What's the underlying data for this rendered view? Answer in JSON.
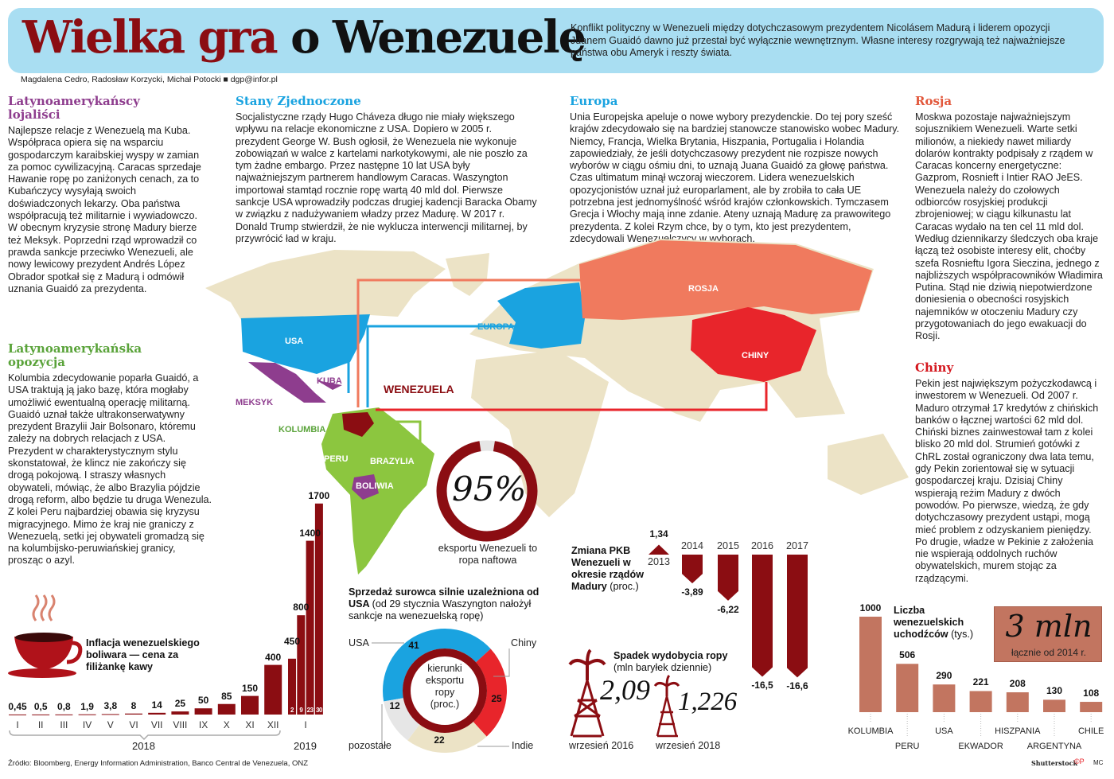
{
  "header": {
    "title_red": "Wielka gra",
    "title_black": "o Wenezuelę",
    "intro": "Konflikt polityczny w Wenezueli między dotychczasowym prezydentem Nicolásem Madurą i liderem opozycji Juanem Guaidó dawno już przestał być wyłącznie wewnętrznym. Własne interesy rozgrywają też najważniejsze państwa obu Ameryk i reszty świata.",
    "byline": "Magdalena Cedro, Radosław Korzycki, Michał Potocki ■ dgp@infor.pl"
  },
  "sections": {
    "loyalists": {
      "heading": "Latynoamerykańscy lojaliści",
      "text": "Najlepsze relacje z Wenezuelą ma Kuba. Współpraca opiera się na wsparciu gospodarczym karaibskiej wyspy w zamian za pomoc cywilizacyjną. Caracas sprzedaje Hawanie ropę po zaniżonych cenach, za to Kubańczycy wysyłają swoich doświadczonych lekarzy. Oba państwa współpracują też militarnie i wywiadowczo. W obecnym kryzysie stronę Madury bierze też Meksyk. Poprzedni rząd wprowadził co prawda sankcje przeciwko Wenezueli, ale nowy lewicowy prezydent Andrés López Obrador spotkał się z Madurą i odmówił uznania Guaidó za prezydenta."
    },
    "opposition": {
      "heading": "Latynoamerykańska opozycja",
      "text": "Kolumbia zdecydowanie poparła Guaidó, a USA traktują ją jako bazę, która mogłaby umożliwić ewentualną operację militarną. Guaidó uznał także ultrakonserwatywny prezydent Brazylii Jair Bolsonaro, któremu zależy na dobrych relacjach z USA. Prezydent w charakterystycznym stylu skonstatował, że klincz nie zakończy się drogą pokojową. I straszy własnych obywateli, mówiąc, że albo Brazylia pójdzie drogą reform, albo będzie tu druga Wenezula. Z kolei Peru najbardziej obawia się kryzysu migracyjnego. Mimo że kraj nie graniczy z Wenezuelą, setki jej obywateli gromadzą się na kolumbijsko-peruwiańskiej granicy, prosząc o azyl."
    },
    "usa": {
      "heading": "Stany Zjednoczone",
      "text": "Socjalistyczne rządy Hugo Cháveza długo nie miały większego wpływu na relacje ekonomiczne z USA. Dopiero w 2005 r. prezydent George W. Bush ogłosił, że Wenezuela nie wykonuje zobowiązań w walce z kartelami narkotykowymi, ale nie poszło za tym żadne embargo. Przez następne 10 lat USA były najważniejszym partnerem handlowym Caracas. Waszyngton importował stamtąd rocznie ropę wartą 40 mld dol. Pierwsze sankcje USA wprowadziły podczas drugiej kadencji Baracka Obamy w związku z nadużywaniem władzy przez Madurę. W 2017 r. Donald Trump stwierdził, że nie wyklucza interwencji militarnej, by przywrócić ład w kraju."
    },
    "europe": {
      "heading": "Europa",
      "text": "Unia Europejska apeluje o nowe wybory prezydenckie. Do tej pory sześć krajów zdecydowało się na bardziej stanowcze stanowisko wobec Madury. Niemcy, Francja, Wielka Brytania, Hiszpania, Portugalia i Holandia zapowiedziały, że jeśli dotychczasowy prezydent nie rozpisze nowych wyborów w ciągu ośmiu dni, to uznają Juana Guaidó za głowę państwa. Czas ultimatum minął wczoraj wieczorem. Lidera wenezuelskich opozycjonistów uznał już europarlament, ale by zrobiła to cała UE potrzebna jest jednomyślność wśród krajów członkowskich. Tymczasem Grecja i Włochy mają inne zdanie. Ateny uznają Madurę za prawowitego prezydenta. Z kolei Rzym chce, by o tym, kto jest prezydentem, zdecydowali Wenezuelczycy w wyborach."
    },
    "russia": {
      "heading": "Rosja",
      "text": "Moskwa pozostaje najważniejszym sojusznikiem Wenezueli. Warte setki milionów, a niekiedy nawet miliardy dolarów kontrakty podpisały z rządem w Caracas koncerny energetyczne: Gazprom, Rosnieft i Intier RAO JeES. Wenezuela należy do czołowych odbiorców rosyjskiej produkcji zbrojeniowej; w ciągu kilkunastu lat Caracas wydało na ten cel 11 mld dol. Według dziennikarzy śledczych oba kraje łączą też osobiste interesy elit, choćby szefa Rosnieftu Igora Sieczina, jednego z najbliższych współpracowników Władimira Putina. Stąd nie dziwią niepotwierdzone doniesienia o obecności rosyjskich najemników w otoczeniu Madury czy przygotowaniach do jego ewakuacji do Rosji."
    },
    "china": {
      "heading": "Chiny",
      "text": "Pekin jest największym pożyczkodawcą i inwestorem w Wenezueli. Od 2007 r. Maduro otrzymał 17 kredytów z chińskich banków o łącznej wartości 62 mld dol. Chiński biznes zainwestował tam z kolei blisko 20 mld dol. Strumień gotówki z ChRL został ograniczony dwa lata temu, gdy Pekin zorientował się w sytuacji gospodarczej kraju. Dzisiaj Chiny wspierają reżim Madury z dwóch powodów. Po pierwsze, wiedzą, że gdy dotychczasowy prezydent ustąpi, mogą mieć problem z odzyskaniem pieniędzy. Po drugie, władze w Pekinie z założenia nie wspierają oddolnych ruchów obywatelskich, murem stojąc za rządzącymi."
    }
  },
  "map": {
    "labels": {
      "usa": "USA",
      "europe": "EUROPA",
      "russia": "ROSJA",
      "china": "CHINY",
      "cuba": "KUBA",
      "mexico": "MEKSYK",
      "venezuela": "WENEZUELA",
      "colombia": "KOLUMBIA",
      "peru": "PERU",
      "brazil": "BRAZYLIA",
      "bolivia": "BOLIWIA"
    },
    "colors": {
      "land": "#ece3c6",
      "usa": "#1aa3e0",
      "europe": "#1aa3e0",
      "russia": "#f07a5e",
      "china": "#e8252b",
      "allies": "#8e3d8e",
      "opposition": "#8cc63f",
      "venezuela": "#8b0d12"
    }
  },
  "oil_export": {
    "value": "95%",
    "caption": "eksportu Wenezueli to ropa naftowa",
    "fraction": 0.95
  },
  "source": "Źródło: Bloomberg, Energy Information Administration, Banco Central de Venezuela, ONZ",
  "credits": {
    "photo": "Shutterstock",
    "mark": "©P",
    "author": "MC"
  },
  "chart_data": [
    {
      "id": "coffee",
      "type": "bar",
      "title": "Inflacja wenezuelskiego boliwara — cena za filiżankę kawy",
      "categories": [
        "I",
        "II",
        "III",
        "IV",
        "V",
        "VI",
        "VII",
        "VIII",
        "IX",
        "X",
        "XI",
        "XII"
      ],
      "values": [
        0.45,
        0.5,
        0.8,
        1.9,
        3.8,
        8,
        14,
        25,
        50,
        85,
        150,
        400
      ],
      "labels": [
        "0,45",
        "0,5",
        "0,8",
        "1,9",
        "3,8",
        "8",
        "14",
        "25",
        "50",
        "85",
        "150",
        "400"
      ],
      "group_label": "2018",
      "extra": {
        "group_label": "2019",
        "category": "I",
        "days": [
          "2",
          "9",
          "23",
          "30"
        ],
        "values": [
          450,
          800,
          1400,
          1700
        ],
        "labels": [
          "450",
          "800",
          "1400",
          "1700"
        ]
      }
    },
    {
      "id": "gdp",
      "type": "bar",
      "title": "Zmiana PKB Wenezueli w okresie rządów Madury",
      "unit": "(proc.)",
      "categories": [
        "2013",
        "2014",
        "2015",
        "2016",
        "2017"
      ],
      "values": [
        1.34,
        -3.89,
        -6.22,
        -16.5,
        -16.6
      ],
      "labels": [
        "1,34",
        "-3,89",
        "-6,22",
        "-16,5",
        "-16,6"
      ]
    },
    {
      "id": "oil_production",
      "type": "table",
      "title": "Spadek wydobycia ropy",
      "unit": "(mln baryłek dziennie)",
      "categories": [
        "wrzesień 2016",
        "wrzesień 2018"
      ],
      "values": [
        2.09,
        1.226
      ],
      "labels": [
        "2,09",
        "1,226"
      ]
    },
    {
      "id": "oil_destinations",
      "type": "pie",
      "title": "Sprzedaż surowca silnie uzależniona od USA",
      "subtitle": "(od 29 stycznia Waszyngton nałożył sankcje na wenezuelską ropę)",
      "center_label": "kierunki eksportu ropy (proc.)",
      "categories": [
        "USA",
        "Chiny",
        "Indie",
        "pozostałe"
      ],
      "values": [
        41,
        25,
        22,
        12
      ],
      "colors": [
        "#1aa3e0",
        "#e8252b",
        "#ece3c6",
        "#e6e6e6"
      ]
    },
    {
      "id": "refugees",
      "type": "bar",
      "title": "Liczba wenezuelskich uchodźców",
      "unit": "(tys.)",
      "categories": [
        "KOLUMBIA",
        "PERU",
        "USA",
        "EKWADOR",
        "HISZPANIA",
        "ARGENTYNA",
        "CHILE"
      ],
      "values": [
        1000,
        506,
        290,
        221,
        208,
        130,
        108
      ],
      "total": {
        "value": "3 mln",
        "caption": "łącznie od 2014 r."
      }
    }
  ]
}
